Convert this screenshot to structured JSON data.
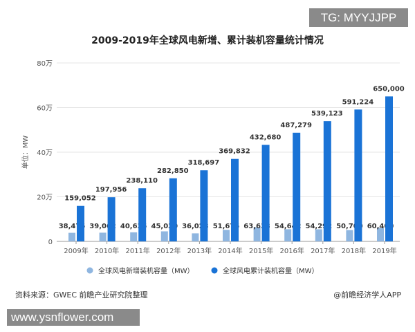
{
  "watermark_top": "TG: MYYJJPP",
  "watermark_bottom": "www.ysnflower.com",
  "source": "资料来源：GWEC 前瞻产业研究院整理",
  "credit": "@前瞻经济学人APP",
  "colors": {
    "new": "#8fb6e0",
    "cumulative": "#1a73d6"
  },
  "chart_data": {
    "type": "bar",
    "title": "2009-2019年全球风电新增、累计装机容量统计情况",
    "ylabel": "单位：MW",
    "xlabel": "",
    "ylim": [
      0,
      800000
    ],
    "yticks": [
      0,
      200000,
      400000,
      600000,
      800000
    ],
    "ytick_labels": [
      "0",
      "20万",
      "40万",
      "60万",
      "80万"
    ],
    "grid": true,
    "legend": "bottom",
    "categories": [
      "2009年",
      "2010年",
      "2011年",
      "2012年",
      "2013年",
      "2014年",
      "2015年",
      "2016年",
      "2017年",
      "2018年",
      "2019年"
    ],
    "series": [
      {
        "name": "全球风电新增装机容量（MW）",
        "values": [
          38475,
          39062,
          40635,
          45030,
          36023,
          51675,
          63633,
          54642,
          54292,
          50700,
          60400
        ],
        "labels": [
          "38,475",
          "39,062",
          "40,635",
          "45,030",
          "36,023",
          "51,675",
          "63,633",
          "54,642",
          "54,292",
          "50,700",
          "60,400"
        ]
      },
      {
        "name": "全球风电累计装机容量（MW）",
        "values": [
          159052,
          197956,
          238110,
          282850,
          318697,
          369832,
          432680,
          487279,
          539123,
          591224,
          650000
        ],
        "labels": [
          "159,052",
          "197,956",
          "238,110",
          "282,850",
          "318,697",
          "369,832",
          "432,680",
          "487,279",
          "539,123",
          "591,224",
          "650,000"
        ]
      }
    ]
  }
}
